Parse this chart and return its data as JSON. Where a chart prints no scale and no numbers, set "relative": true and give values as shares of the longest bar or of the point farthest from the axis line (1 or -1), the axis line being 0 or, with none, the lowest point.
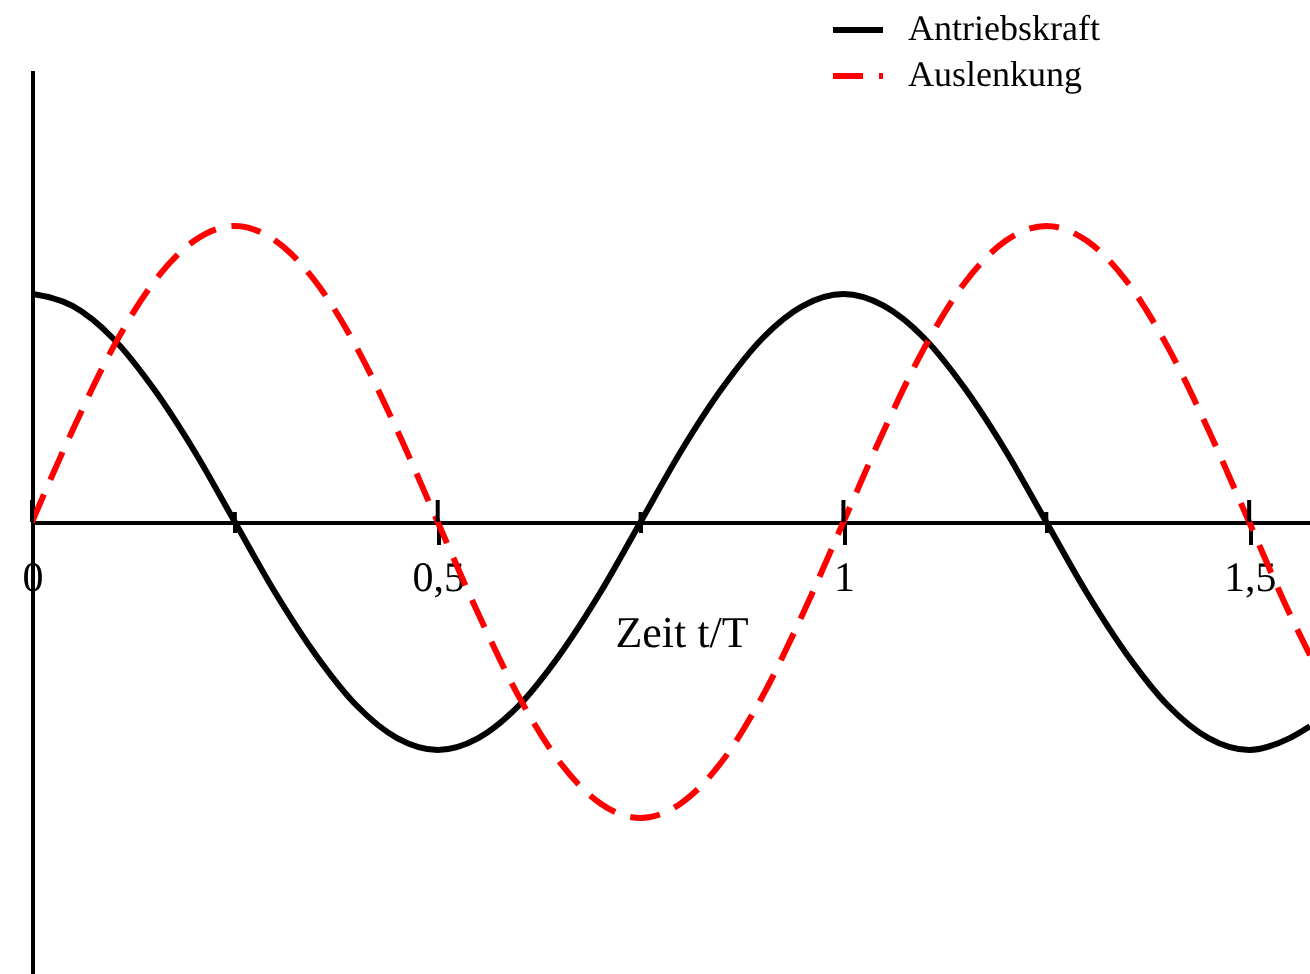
{
  "chart_data": {
    "type": "line",
    "xlabel": "Zeit t/T",
    "relative": true,
    "legend": "top right",
    "grid": false,
    "marker": "none",
    "xlim": [
      0,
      1.575
    ],
    "xticks": [
      0,
      {
        "value": 0.25,
        "label": null
      },
      {
        "value": 0.5,
        "label": "0,5"
      },
      {
        "value": 0.75,
        "label": null
      },
      1,
      {
        "value": 1.25,
        "label": null
      },
      {
        "value": 1.5,
        "label": "1,5"
      }
    ],
    "x": [
      0,
      0.05,
      0.1,
      0.15,
      0.2,
      0.25,
      0.3,
      0.35,
      0.4,
      0.45,
      0.5,
      0.55,
      0.6,
      0.65,
      0.7,
      0.75,
      0.8,
      0.85,
      0.9,
      0.95,
      1,
      1.05,
      1.1,
      1.15,
      1.2,
      1.25,
      1.3,
      1.35,
      1.4,
      1.45,
      1.5,
      1.55,
      1.575
    ],
    "series": [
      {
        "name": "Antriebskraft",
        "color": "#000000",
        "line_style": "solid",
        "values": [
          0.77,
          0.73,
          0.62,
          0.45,
          0.24,
          0,
          -0.24,
          -0.45,
          -0.62,
          -0.73,
          -0.77,
          -0.73,
          -0.62,
          -0.45,
          -0.24,
          0,
          0.24,
          0.45,
          0.62,
          0.73,
          0.77,
          0.73,
          0.62,
          0.45,
          0.24,
          0,
          -0.24,
          -0.45,
          -0.62,
          -0.73,
          -0.77,
          -0.73,
          -0.69
        ]
      },
      {
        "name": "Auslenkung",
        "color": "#ff0000",
        "line_style": "dashed",
        "values": [
          0,
          0.31,
          0.59,
          0.81,
          0.95,
          1,
          0.95,
          0.81,
          0.59,
          0.31,
          0,
          -0.31,
          -0.59,
          -0.81,
          -0.95,
          -1,
          -0.95,
          -0.81,
          -0.59,
          -0.31,
          0,
          0.31,
          0.59,
          0.81,
          0.95,
          1,
          0.95,
          0.81,
          0.59,
          0.31,
          0,
          -0.31,
          -0.45
        ]
      }
    ]
  }
}
